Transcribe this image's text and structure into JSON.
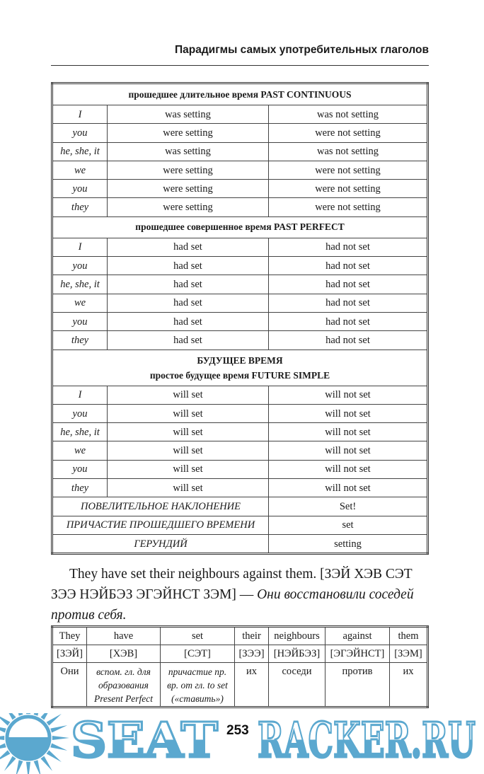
{
  "running_head": "Парадигмы самых употребительных глаголов",
  "conjugation_table": [
    {
      "section": [
        "прошедшее длительное время PAST CONTINUOUS"
      ]
    },
    {
      "row": [
        "I",
        "was setting",
        "was not setting"
      ]
    },
    {
      "row": [
        "you",
        "were setting",
        "were not setting"
      ]
    },
    {
      "row": [
        "he, she, it",
        "was setting",
        "was not setting"
      ]
    },
    {
      "row": [
        "we",
        "were setting",
        "were not setting"
      ]
    },
    {
      "row": [
        "you",
        "were setting",
        "were not setting"
      ]
    },
    {
      "row": [
        "they",
        "were setting",
        "were not setting"
      ]
    },
    {
      "section": [
        "прошедшее совершенное время PAST PERFECT"
      ]
    },
    {
      "row": [
        "I",
        "had set",
        "had not set"
      ]
    },
    {
      "row": [
        "you",
        "had set",
        "had not set"
      ]
    },
    {
      "row": [
        "he, she, it",
        "had set",
        "had not set"
      ]
    },
    {
      "row": [
        "we",
        "had set",
        "had not set"
      ]
    },
    {
      "row": [
        "you",
        "had set",
        "had not set"
      ]
    },
    {
      "row": [
        "they",
        "had set",
        "had not set"
      ]
    },
    {
      "section": [
        "БУДУЩЕЕ ВРЕМЯ",
        "простое будущее время FUTURE SIMPLE"
      ]
    },
    {
      "row": [
        "I",
        "will set",
        "will not set"
      ]
    },
    {
      "row": [
        "you",
        "will set",
        "will not set"
      ]
    },
    {
      "row": [
        "he, she, it",
        "will set",
        "will not set"
      ]
    },
    {
      "row": [
        "we",
        "will set",
        "will not set"
      ]
    },
    {
      "row": [
        "you",
        "will set",
        "will not set"
      ]
    },
    {
      "row": [
        "they",
        "will set",
        "will not set"
      ]
    },
    {
      "form": [
        "ПОВЕЛИТЕЛЬНОЕ НАКЛОНЕНИЕ",
        "Set!"
      ]
    },
    {
      "form": [
        "ПРИЧАСТИЕ ПРОШЕДШЕГО ВРЕМЕНИ",
        "set"
      ]
    },
    {
      "form": [
        "ГЕРУНДИЙ",
        "setting"
      ]
    }
  ],
  "sentence": {
    "english": "They have set their neighbours against them.",
    "transcription": "[ЗЭЙ ХЭВ СЭТ ЗЭЭ НЭЙБЭЗ ЭГЭЙНСТ ЗЭМ] —",
    "translation": "Они восстановили соседей против себя."
  },
  "word_table": {
    "words": [
      "They",
      "have",
      "set",
      "their",
      "neighbours",
      "against",
      "them"
    ],
    "transcriptions": [
      "[ЗЭЙ]",
      "[ХЭВ]",
      "[СЭТ]",
      "[ЗЭЭ]",
      "[НЭЙБЭЗ]",
      "[ЭГЭЙНСТ]",
      "[ЗЭМ]"
    ],
    "translations": [
      "Они",
      "вспом. гл. для образования Present Perfect",
      "причастие пр. вр. от гл. to set («ставить»)",
      "их",
      "соседи",
      "против",
      "их"
    ]
  },
  "page_number": "253",
  "watermark": {
    "text": "SEATRACKER.RU",
    "color": "#5ba8cf"
  }
}
